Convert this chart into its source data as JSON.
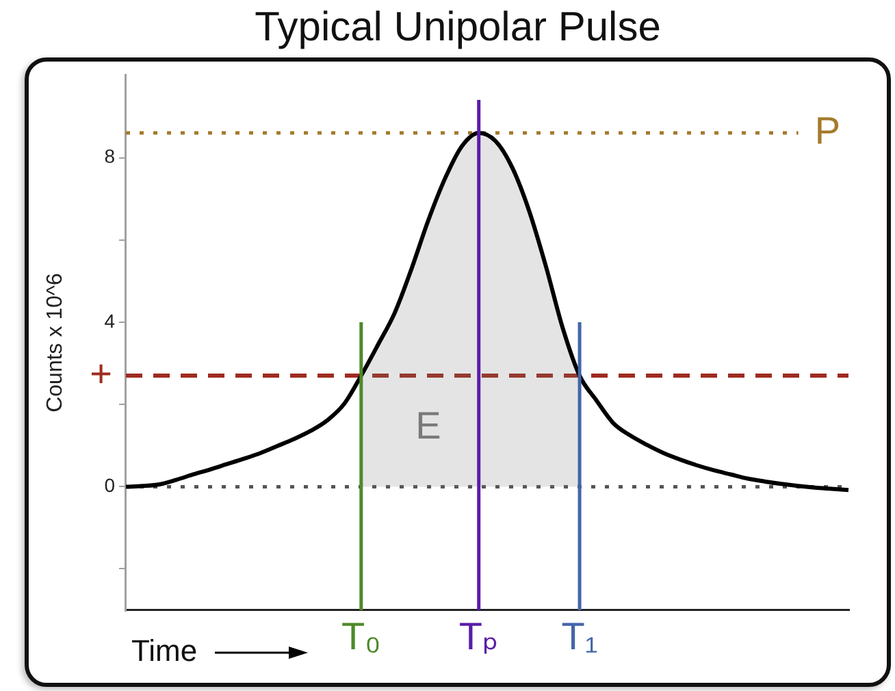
{
  "chart_data": {
    "type": "line",
    "title": "Typical Unipolar Pulse",
    "xlabel": "Time",
    "ylabel": "Counts x 10^6",
    "categories": [
      null,
      null,
      null,
      null,
      null,
      null,
      null,
      null,
      null,
      null,
      null,
      null,
      null,
      null,
      "T₀",
      null,
      null,
      null,
      null,
      null,
      null,
      "Tₚ",
      null,
      null,
      null,
      null,
      null,
      "T₁",
      null,
      null,
      null,
      null,
      null,
      null,
      null,
      null,
      null,
      null,
      null,
      null,
      null,
      null,
      null,
      null
    ],
    "series": [
      {
        "color": "#000000",
        "values": [
          0,
          0.02,
          0.06,
          0.17,
          0.3,
          0.42,
          0.55,
          0.68,
          0.82,
          0.99,
          1.16,
          1.36,
          1.62,
          2.02,
          2.7,
          3.45,
          4.23,
          5.3,
          6.48,
          7.5,
          8.28,
          8.6,
          8.4,
          7.75,
          6.7,
          5.35,
          3.85,
          2.7,
          2.1,
          1.55,
          1.25,
          1.02,
          0.82,
          0.66,
          0.52,
          0.4,
          0.3,
          0.2,
          0.13,
          0.07,
          0.02,
          -0.02,
          -0.05,
          -0.08
        ]
      },
      {
        "type": "area",
        "name": "E",
        "color": "#7a7a7a",
        "values": [
          null,
          null,
          null,
          null,
          null,
          null,
          null,
          null,
          null,
          null,
          null,
          null,
          null,
          null,
          2.7,
          3.45,
          4.23,
          5.3,
          6.48,
          7.5,
          8.28,
          8.6,
          8.4,
          7.75,
          6.7,
          5.35,
          3.85,
          2.7,
          null,
          null,
          null,
          null,
          null,
          null,
          null,
          null,
          null,
          null,
          null,
          null,
          null,
          null,
          null,
          null
        ]
      },
      {
        "x": [
          "T₀",
          "T₀"
        ],
        "values": [
          -3,
          4
        ],
        "color": "#4e8a2a"
      },
      {
        "x": [
          "Tₚ",
          "Tₚ"
        ],
        "values": [
          -3,
          9.4
        ],
        "color": "#5a1ca8"
      },
      {
        "x": [
          "T₁",
          "T₁"
        ],
        "values": [
          -3,
          4
        ],
        "color": "#4466a8"
      }
    ],
    "ylim": [
      -3,
      10
    ],
    "yticks": [
      {
        "value": -2,
        "label": null
      },
      0,
      {
        "value": 2,
        "label": null
      },
      4,
      {
        "value": 6,
        "label": null
      },
      8
    ],
    "ref_lines": [
      {
        "axis": "y",
        "value": 0,
        "color": "#555555",
        "line_style": "dotted"
      },
      {
        "axis": "y",
        "value": 2.7,
        "label": "+",
        "color": "#9e2b1f",
        "line_style": "dashed"
      },
      {
        "axis": "y",
        "value": 8.6,
        "label": "P",
        "color": "#a47a2c",
        "line_style": "dotted"
      }
    ],
    "marker": "none"
  }
}
